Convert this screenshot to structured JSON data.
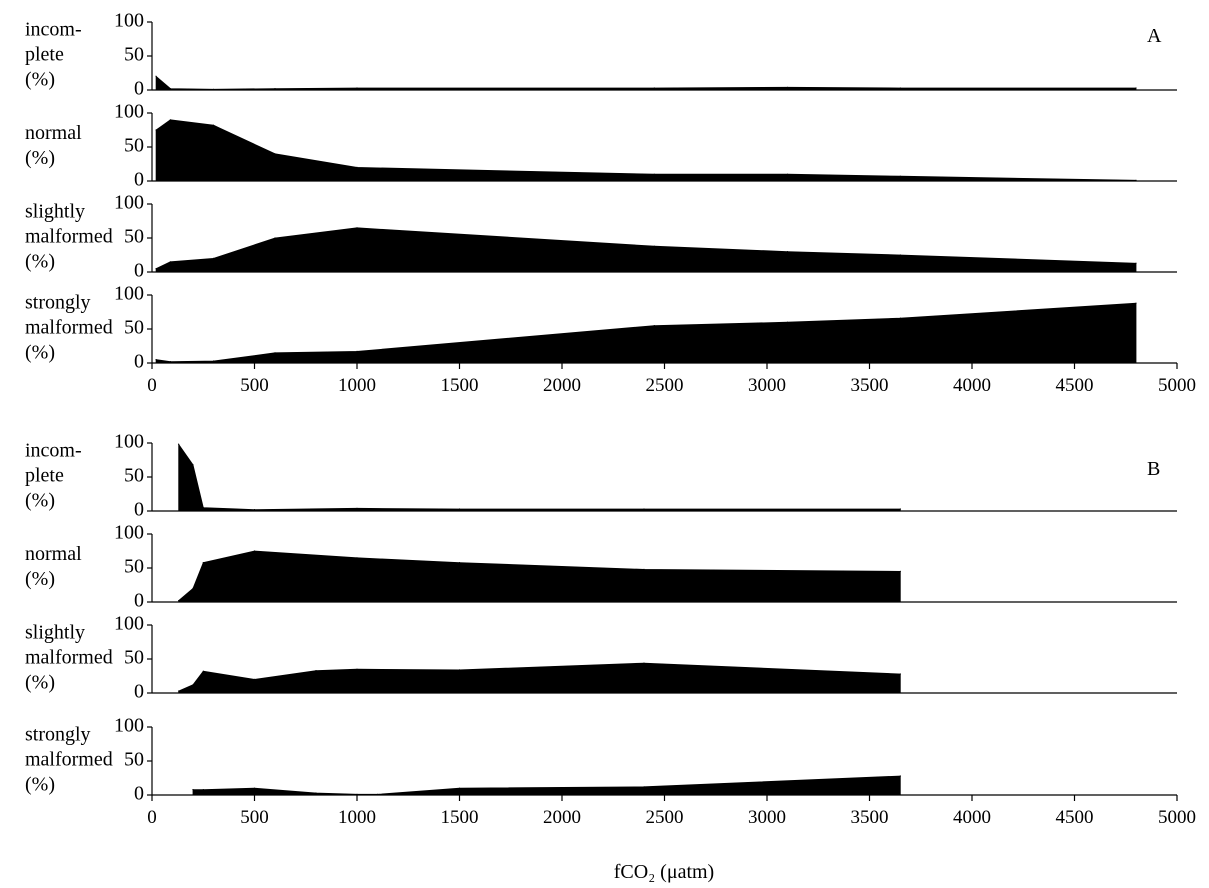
{
  "colors": {
    "fill": "#000000",
    "axis": "#000000",
    "background": "#ffffff"
  },
  "chart_data": [
    {
      "type": "area",
      "panel_label": "A",
      "xlabel": "",
      "xlim": [
        0,
        5000
      ],
      "x_ticks": [
        "0",
        "500",
        "1000",
        "1500",
        "2000",
        "2500",
        "3000",
        "3500",
        "4000",
        "4500",
        "5000"
      ],
      "ylim": [
        0,
        100
      ],
      "y_ticks": [
        "0",
        "50",
        "100"
      ],
      "grid": false,
      "subplots": [
        {
          "ylabel": [
            "incom-",
            "plete",
            "(%)"
          ],
          "x": [
            20,
            90,
            300,
            600,
            1000,
            2450,
            3100,
            3650,
            4800
          ],
          "values": [
            20,
            2,
            1,
            2,
            3,
            3,
            4,
            3,
            3
          ]
        },
        {
          "ylabel": [
            "normal",
            "(%)"
          ],
          "x": [
            20,
            90,
            300,
            600,
            1000,
            2450,
            3100,
            3650,
            4800
          ],
          "values": [
            75,
            90,
            82,
            40,
            20,
            10,
            10,
            7,
            1
          ]
        },
        {
          "ylabel": [
            "slightly",
            "malformed",
            "(%)"
          ],
          "x": [
            20,
            90,
            300,
            600,
            1000,
            2450,
            3100,
            3650,
            4800
          ],
          "values": [
            5,
            15,
            20,
            50,
            65,
            38,
            30,
            25,
            13
          ]
        },
        {
          "ylabel": [
            "strongly",
            "malformed",
            "(%)"
          ],
          "x": [
            20,
            90,
            300,
            600,
            1000,
            2450,
            3100,
            3650,
            4800
          ],
          "values": [
            5,
            2,
            3,
            15,
            17,
            55,
            60,
            66,
            88
          ]
        }
      ]
    },
    {
      "type": "area",
      "panel_label": "B",
      "xlabel": "fCO₂ (μatm)",
      "xlim": [
        0,
        5000
      ],
      "x_ticks": [
        "0",
        "500",
        "1000",
        "1500",
        "2000",
        "2500",
        "3000",
        "3500",
        "4000",
        "4500",
        "5000"
      ],
      "ylim": [
        0,
        100
      ],
      "y_ticks": [
        "0",
        "50",
        "100"
      ],
      "grid": false,
      "subplots": [
        {
          "ylabel": [
            "incom-",
            "plete",
            "(%)"
          ],
          "x": [
            130,
            200,
            250,
            500,
            1000,
            1500,
            2400,
            3650
          ],
          "values": [
            98,
            68,
            5,
            2,
            4,
            3,
            3,
            3
          ]
        },
        {
          "ylabel": [
            "normal",
            "(%)"
          ],
          "x": [
            130,
            200,
            250,
            500,
            1000,
            1500,
            2400,
            3650
          ],
          "values": [
            2,
            20,
            58,
            75,
            65,
            58,
            48,
            45
          ]
        },
        {
          "ylabel": [
            "slightly",
            "malformed",
            "(%)"
          ],
          "x": [
            130,
            200,
            250,
            500,
            800,
            1000,
            1500,
            2400,
            3650
          ],
          "values": [
            3,
            12,
            32,
            20,
            33,
            35,
            34,
            44,
            28
          ]
        },
        {
          "ylabel": [
            "strongly",
            "malformed",
            "(%)"
          ],
          "x": [
            200,
            250,
            500,
            800,
            1000,
            1100,
            1500,
            2400,
            3650
          ],
          "values": [
            8,
            8,
            10,
            3,
            1,
            1,
            10,
            12,
            28
          ]
        }
      ]
    }
  ]
}
